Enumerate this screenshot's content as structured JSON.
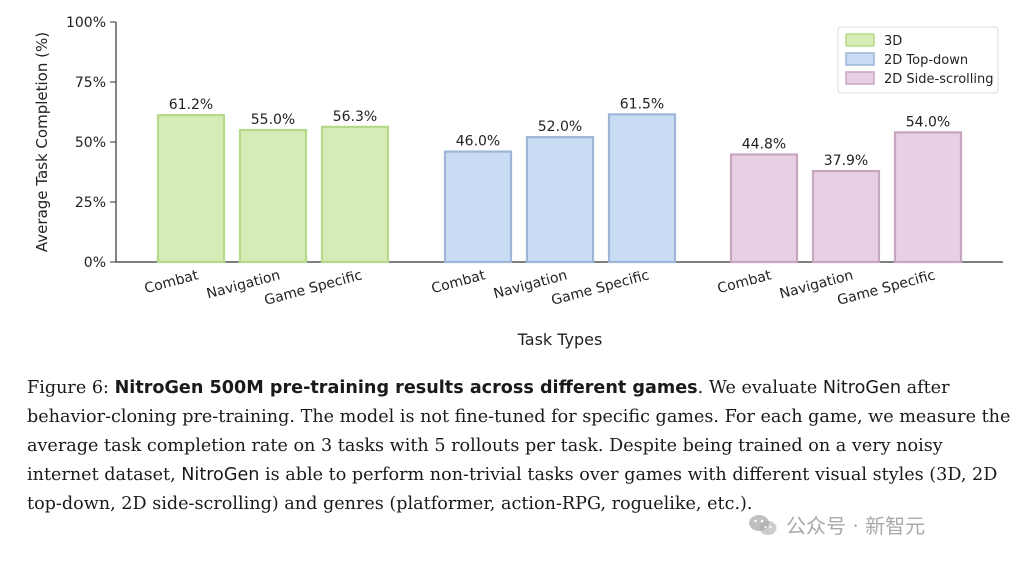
{
  "chart_data": {
    "type": "bar",
    "title": "",
    "xlabel": "Task Types",
    "ylabel": "Average Task Completion (%)",
    "ylim": [
      0,
      100
    ],
    "yticks": [
      "0%",
      "25%",
      "50%",
      "75%",
      "100%"
    ],
    "ytick_values": [
      0,
      25,
      50,
      75,
      100
    ],
    "grid": false,
    "legend_position": "top-right",
    "series": [
      {
        "name": "3D",
        "color": "#d5ecb6",
        "edge": "#b7d98c",
        "categories": [
          "Combat",
          "Navigation",
          "Game Specific"
        ],
        "values": [
          61.2,
          55.0,
          56.3
        ],
        "labels": [
          "61.2%",
          "55.0%",
          "56.3%"
        ]
      },
      {
        "name": "2D Top-down",
        "color": "#c8dcf3",
        "edge": "#9db5d6",
        "categories": [
          "Combat",
          "Navigation",
          "Game Specific"
        ],
        "values": [
          46.0,
          52.0,
          61.5
        ],
        "labels": [
          "46.0%",
          "52.0%",
          "61.5%"
        ]
      },
      {
        "name": "2D Side-scrolling",
        "color": "#e8cfe3",
        "edge": "#c7a6c0",
        "categories": [
          "Combat",
          "Navigation",
          "Game Specific"
        ],
        "values": [
          44.8,
          37.9,
          54.0
        ],
        "labels": [
          "44.8%",
          "37.9%",
          "54.0%"
        ]
      }
    ]
  },
  "caption": {
    "figure_label": "Figure 6:",
    "bold_title": "NitroGen 500M pre-training results across different games",
    "text_1": ". We evaluate ",
    "model_name": "NitroGen",
    "text_2": " after behavior-cloning pre-training. The model is not fine-tuned for specific games. For each game, we measure the average task completion rate on 3 tasks with 5 rollouts per task. Despite being trained on a very noisy internet dataset, ",
    "model_name_2": "NitroGen",
    "text_3": " is able to perform non-trivial tasks over games with different visual styles (3D, 2D top-down, 2D side-scrolling) and genres (platformer, action-RPG, roguelike, etc.)."
  },
  "watermark": {
    "text": "公众号 · 新智元"
  }
}
